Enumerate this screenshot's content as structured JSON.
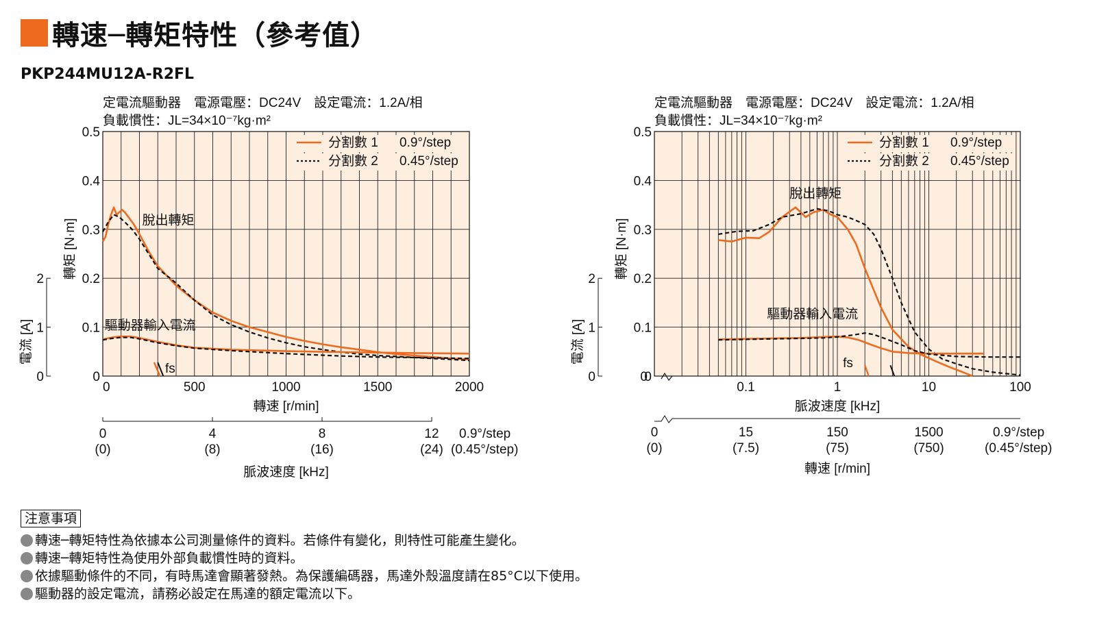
{
  "header": {
    "title": "轉速─轉矩特性（參考值）",
    "model": "PKP244MU12A-R2FL"
  },
  "colors": {
    "accent": "#ee6a1e",
    "plot_bg": "#fdeee0",
    "grid": "#222222"
  },
  "chart_data": [
    {
      "type": "line",
      "conditions_line1": "定電流驅動器　電源電壓：DC24V　設定電流：1.2A/相",
      "conditions_line2": "負載慣性：JL=34×10⁻⁷kg·m²",
      "xlabel": "轉速 [r/min]",
      "ylabel": "轉矩 [N·m]",
      "ylabel2": "電流 [A]",
      "x_scale": "linear",
      "xlim": [
        0,
        2000
      ],
      "ylim": [
        0,
        0.5
      ],
      "x_ticks": [
        "0",
        "500",
        "1000",
        "1500",
        "2000"
      ],
      "y_ticks": [
        "0",
        "0.1",
        "0.2",
        "0.3",
        "0.4",
        "0.5"
      ],
      "y2_ticks": [
        "0",
        "1",
        "2"
      ],
      "x_minor": [
        100,
        200,
        300,
        400,
        600,
        700,
        800,
        900
      ],
      "secondary_axis": {
        "label": "脈波速度 [kHz]",
        "ticks": [
          "0",
          "4",
          "8",
          "12"
        ],
        "ticks_sub": [
          "(0)",
          "(8)",
          "(16)",
          "(24)"
        ],
        "unit_label": "0.9°/step",
        "unit_label_sub": "(0.45°/step)"
      },
      "legend": {
        "placement": "top-right",
        "entries": [
          {
            "name": "分割數 1",
            "step": "0.9°/step",
            "style": "solid"
          },
          {
            "name": "分割數 2",
            "step": "0.45°/step",
            "style": "dashed"
          }
        ]
      },
      "annotations": {
        "pullout": "脫出轉矩",
        "current": "驅動器輸入電流",
        "fs": "fs"
      },
      "series": [
        {
          "name": "分割數 1",
          "curve": "脫出轉矩",
          "style": "solid",
          "x": [
            0,
            15,
            30,
            45,
            60,
            75,
            90,
            105,
            120,
            140,
            170,
            200,
            250,
            300,
            400,
            500,
            600,
            700,
            800,
            900,
            1000,
            1100,
            1200,
            1300,
            1400,
            1500,
            1600,
            1700,
            1800,
            1900,
            2000
          ],
          "y": [
            0.275,
            0.285,
            0.31,
            0.33,
            0.345,
            0.33,
            0.335,
            0.34,
            0.335,
            0.325,
            0.31,
            0.29,
            0.255,
            0.225,
            0.185,
            0.155,
            0.13,
            0.113,
            0.1,
            0.09,
            0.08,
            0.072,
            0.065,
            0.059,
            0.054,
            0.049,
            0.045,
            0.042,
            0.039,
            0.036,
            0.034
          ]
        },
        {
          "name": "分割數 2",
          "curve": "脫出轉矩",
          "style": "dashed",
          "x": [
            0,
            30,
            60,
            90,
            120,
            160,
            200,
            250,
            300,
            400,
            500,
            600,
            700,
            800,
            900,
            1000,
            1100,
            1200,
            1300,
            1400,
            1500,
            1600,
            1700,
            1800,
            1900,
            2000
          ],
          "y": [
            0.295,
            0.315,
            0.33,
            0.325,
            0.315,
            0.3,
            0.28,
            0.25,
            0.22,
            0.19,
            0.155,
            0.125,
            0.105,
            0.09,
            0.078,
            0.068,
            0.06,
            0.054,
            0.049,
            0.045,
            0.042,
            0.04,
            0.038,
            0.036,
            0.034,
            0.032
          ]
        },
        {
          "name": "分割數 1",
          "curve": "驅動器輸入電流",
          "style": "solid",
          "x": [
            0,
            50,
            100,
            150,
            200,
            300,
            400,
            500,
            700,
            1000,
            1300,
            1500,
            1700,
            2000
          ],
          "y": [
            0.075,
            0.079,
            0.081,
            0.081,
            0.078,
            0.07,
            0.063,
            0.058,
            0.054,
            0.051,
            0.049,
            0.048,
            0.047,
            0.046
          ]
        },
        {
          "name": "分割數 2",
          "curve": "驅動器輸入電流",
          "style": "dashed",
          "x": [
            0,
            50,
            100,
            150,
            200,
            300,
            400,
            500,
            700,
            1000,
            1300,
            1500,
            1700,
            2000
          ],
          "y": [
            0.074,
            0.077,
            0.079,
            0.079,
            0.076,
            0.068,
            0.062,
            0.057,
            0.052,
            0.046,
            0.041,
            0.039,
            0.038,
            0.036
          ]
        }
      ]
    },
    {
      "type": "line",
      "conditions_line1": "定電流驅動器　電源電壓：DC24V　設定電流：1.2A/相",
      "conditions_line2": "負載慣性：JL=34×10⁻⁷kg·m²",
      "xlabel": "脈波速度 [kHz]",
      "ylabel": "轉矩 [N·m]",
      "ylabel2": "電流 [A]",
      "x_scale": "log",
      "xlim": [
        0.01,
        100
      ],
      "ylim": [
        0,
        0.5
      ],
      "x_ticks": [
        "0.1",
        "1",
        "10",
        "100"
      ],
      "x_tick_values": [
        0.1,
        1,
        10,
        100
      ],
      "y_ticks": [
        "0",
        "0.1",
        "0.2",
        "0.3",
        "0.4",
        "0.5"
      ],
      "y2_ticks": [
        "0",
        "1",
        "2"
      ],
      "secondary_axis": {
        "label": "轉速 [r/min]",
        "ticks": [
          "0",
          "15",
          "150",
          "1500"
        ],
        "ticks_sub": [
          "(0)",
          "(7.5)",
          "(75)",
          "(750)"
        ],
        "unit_label": "0.9°/step",
        "unit_label_sub": "(0.45°/step)"
      },
      "legend": {
        "placement": "top-right",
        "entries": [
          {
            "name": "分割數 1",
            "step": "0.9°/step",
            "style": "solid"
          },
          {
            "name": "分割數 2",
            "step": "0.45°/step",
            "style": "dashed"
          }
        ]
      },
      "annotations": {
        "pullout": "脫出轉矩",
        "current": "驅動器輸入電流",
        "fs": "fs"
      },
      "series": [
        {
          "name": "分割數 1",
          "curve": "脫出轉矩",
          "style": "solid",
          "x": [
            0.05,
            0.07,
            0.1,
            0.14,
            0.18,
            0.25,
            0.35,
            0.45,
            0.55,
            0.7,
            0.85,
            1.0,
            1.3,
            1.6,
            2.0,
            3.0,
            4.0,
            6.0,
            8.0,
            12,
            16,
            25,
            30
          ],
          "y": [
            0.278,
            0.275,
            0.283,
            0.282,
            0.295,
            0.325,
            0.345,
            0.325,
            0.335,
            0.34,
            0.33,
            0.325,
            0.3,
            0.27,
            0.22,
            0.14,
            0.095,
            0.06,
            0.045,
            0.03,
            0.02,
            0.006,
            0.0
          ]
        },
        {
          "name": "分割數 2",
          "curve": "脫出轉矩",
          "style": "dashed",
          "x": [
            0.05,
            0.08,
            0.12,
            0.18,
            0.25,
            0.4,
            0.6,
            0.8,
            1.0,
            1.3,
            1.6,
            2.0,
            2.5,
            3.0,
            4.0,
            5.0,
            7.0,
            10,
            14,
            20,
            30,
            50,
            100
          ],
          "y": [
            0.29,
            0.296,
            0.297,
            0.31,
            0.325,
            0.332,
            0.342,
            0.338,
            0.33,
            0.325,
            0.318,
            0.31,
            0.29,
            0.26,
            0.2,
            0.15,
            0.09,
            0.055,
            0.035,
            0.025,
            0.015,
            0.008,
            0.002
          ]
        },
        {
          "name": "分割數 1",
          "curve": "驅動器輸入電流",
          "style": "solid",
          "x": [
            0.05,
            0.1,
            0.2,
            0.4,
            0.7,
            1.0,
            1.3,
            1.7,
            2.2,
            3.0,
            4.0,
            6.0,
            10,
            20,
            40
          ],
          "y": [
            0.075,
            0.076,
            0.077,
            0.078,
            0.08,
            0.081,
            0.079,
            0.074,
            0.066,
            0.057,
            0.05,
            0.047,
            0.046,
            0.046,
            0.046
          ]
        },
        {
          "name": "分割數 2",
          "curve": "驅動器輸入電流",
          "style": "dashed",
          "x": [
            0.05,
            0.1,
            0.2,
            0.4,
            0.7,
            1.0,
            1.5,
            2.0,
            2.5,
            3.5,
            5.0,
            7.0,
            10,
            20,
            50,
            100
          ],
          "y": [
            0.074,
            0.075,
            0.076,
            0.077,
            0.078,
            0.08,
            0.084,
            0.088,
            0.085,
            0.075,
            0.064,
            0.052,
            0.045,
            0.04,
            0.039,
            0.039
          ]
        }
      ]
    }
  ],
  "notes": {
    "header": "注意事項",
    "items": [
      "轉速─轉矩特性為依據本公司測量條件的資料。若條件有變化，則特性可能產生變化。",
      "轉速─轉矩特性為使用外部負載慣性時的資料。",
      "依據驅動條件的不同，有時馬達會顯著發熱。為保護編碼器，馬達外殼溫度請在85°C以下使用。",
      "驅動器的設定電流，請務必設定在馬達的額定電流以下。"
    ]
  }
}
